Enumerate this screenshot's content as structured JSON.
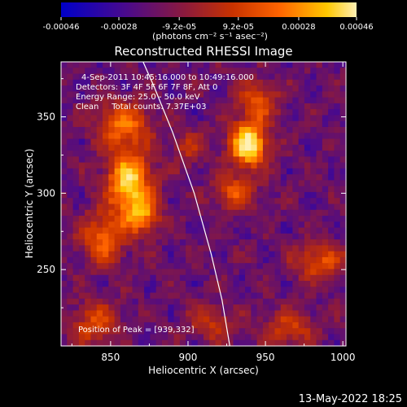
{
  "colorbar": {
    "ticks": [
      {
        "value": -0.00046,
        "label": "-0.00046"
      },
      {
        "value": -0.00028,
        "label": "-0.00028"
      },
      {
        "value": -9.2e-05,
        "label": "-9.2e-05"
      },
      {
        "value": 9.2e-05,
        "label": "9.2e-05"
      },
      {
        "value": 0.00028,
        "label": "0.00028"
      },
      {
        "value": 0.00046,
        "label": "0.00046"
      }
    ],
    "range": [
      -0.00046,
      0.00046
    ],
    "unit": "(photons cm⁻² s⁻¹ asec⁻²)"
  },
  "chart_data": {
    "type": "heatmap",
    "title": "Reconstructed RHESSI Image",
    "xlabel": "Heliocentric X (arcsec)",
    "ylabel": "Heliocentric Y (arcsec)",
    "xlim": [
      818,
      1002
    ],
    "ylim": [
      200,
      386
    ],
    "xticks": [
      850,
      900,
      950,
      1000
    ],
    "yticks": [
      250,
      300,
      350
    ],
    "annotations": [
      "4-Sep-2011 10:45:16.000 to 10:49:16.000",
      "Detectors: 3F 4F 5F 6F 7F 8F, Att 0",
      "Energy Range: 25.0 - 50.0 keV",
      "Clean     Total counts: 7.37E+03"
    ],
    "peak_label": "Position of Peak = [939,332]",
    "peak": [
      939,
      332
    ],
    "colormap": [
      "#0000c8",
      "#4a0a8c",
      "#8c1a3c",
      "#c83200",
      "#ff6400",
      "#ffc800",
      "#fff0b4"
    ],
    "limb_curve": {
      "x": [
        871,
        878,
        890,
        904,
        915,
        922,
        927
      ],
      "y": [
        386,
        370,
        340,
        300,
        260,
        230,
        200
      ]
    },
    "sources": [
      {
        "x": 939,
        "y": 332,
        "amp": 1.0,
        "sx": 8,
        "sy": 10
      },
      {
        "x": 862,
        "y": 307,
        "amp": 0.85,
        "sx": 10,
        "sy": 14
      },
      {
        "x": 858,
        "y": 345,
        "amp": 0.55,
        "sx": 12,
        "sy": 10
      },
      {
        "x": 870,
        "y": 285,
        "amp": 0.55,
        "sx": 8,
        "sy": 8
      },
      {
        "x": 845,
        "y": 270,
        "amp": 0.5,
        "sx": 10,
        "sy": 12
      },
      {
        "x": 945,
        "y": 360,
        "amp": 0.45,
        "sx": 9,
        "sy": 9
      },
      {
        "x": 930,
        "y": 300,
        "amp": 0.45,
        "sx": 9,
        "sy": 8
      },
      {
        "x": 985,
        "y": 255,
        "amp": 0.45,
        "sx": 12,
        "sy": 8
      },
      {
        "x": 840,
        "y": 215,
        "amp": 0.4,
        "sx": 10,
        "sy": 10
      },
      {
        "x": 915,
        "y": 215,
        "amp": 0.3,
        "sx": 10,
        "sy": 8
      },
      {
        "x": 965,
        "y": 212,
        "amp": 0.35,
        "sx": 12,
        "sy": 8
      },
      {
        "x": 900,
        "y": 330,
        "amp": 0.25,
        "sx": 8,
        "sy": 8
      }
    ]
  },
  "footer": {
    "timestamp": "13-May-2022 18:25"
  }
}
